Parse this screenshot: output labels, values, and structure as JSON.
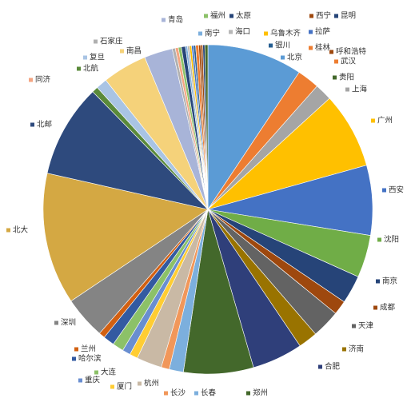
{
  "chart_data": {
    "type": "pie",
    "categories": [
      "北京",
      "武汉",
      "上海",
      "广州",
      "西安",
      "沈阳",
      "南京",
      "成都",
      "天津",
      "济南",
      "合肥",
      "郑州",
      "长春",
      "长沙",
      "杭州",
      "厦门",
      "重庆",
      "大连",
      "哈尔滨",
      "兰州",
      "深圳",
      "北大",
      "北邮",
      "北航",
      "复旦",
      "南昌",
      "青岛",
      "石家庄",
      "同济",
      "福州",
      "太原",
      "南宁",
      "海口",
      "乌鲁木齐",
      "拉萨",
      "银川",
      "桂林",
      "呼和浩特",
      "西宁",
      "昆明",
      "贵阳"
    ],
    "values": [
      9.4,
      2.2,
      1.7,
      7.5,
      6.9,
      4.2,
      2.8,
      1.4,
      2.8,
      1.9,
      5.0,
      6.9,
      1.4,
      0.8,
      2.5,
      0.8,
      0.8,
      1.1,
      1.1,
      0.6,
      4.2,
      13.0,
      9.2,
      0.6,
      1.1,
      4.4,
      2.8,
      0.3,
      0.3,
      0.3,
      0.4,
      0.2,
      0.2,
      0.2,
      0.2,
      0.2,
      0.3,
      0.2,
      0.2,
      0.2,
      0.3
    ],
    "colors": [
      "#5b9bd5",
      "#ed7d31",
      "#a5a5a5",
      "#ffc000",
      "#4472c4",
      "#70ad47",
      "#264478",
      "#9e480e",
      "#636363",
      "#997300",
      "#2f3f7a",
      "#43682b",
      "#7cafdd",
      "#f1975a",
      "#c9b9a5",
      "#ffcd33",
      "#698ed0",
      "#8cc168",
      "#335aa1",
      "#d26012",
      "#848484",
      "#d4a843",
      "#2e4a7d",
      "#5a8a3a",
      "#a9c4e4",
      "#f5d27a",
      "#a8b4d8",
      "#b0b0b0",
      "#f4a582",
      "#8cc168",
      "#264478",
      "#7cafdd",
      "#b7b7b7",
      "#ffc000",
      "#4472c4",
      "#255e91",
      "#ed7d31",
      "#9e480e",
      "#9e480e",
      "#264478",
      "#43682b"
    ]
  }
}
